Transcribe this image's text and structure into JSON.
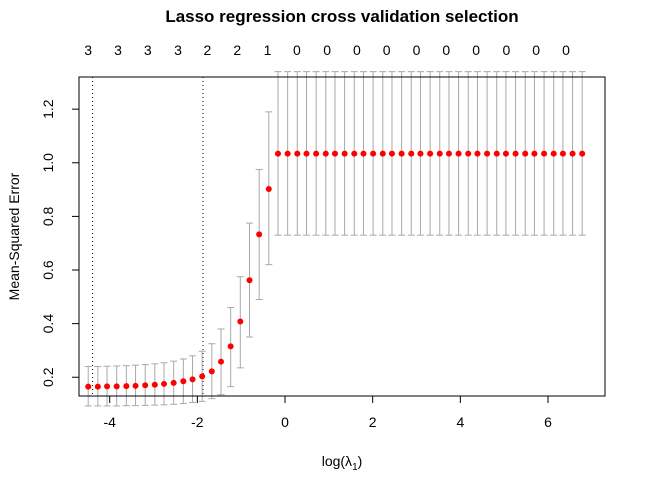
{
  "chart_data": {
    "type": "scatter",
    "title": "Lasso regression cross validation selection",
    "xlabel": "log(λ",
    "xlabel_sub": "1",
    "xlabel_close": ")",
    "ylabel": "Mean-Squared Error",
    "xlim": [
      -4.7,
      7.3
    ],
    "ylim": [
      0.13,
      1.32
    ],
    "x_ticks": [
      -4,
      -2,
      0,
      2,
      4,
      6
    ],
    "x_tick_labels": [
      "-4",
      "-2",
      "0",
      "2",
      "4",
      "6"
    ],
    "y_ticks": [
      0.2,
      0.4,
      0.6,
      0.8,
      1.0,
      1.2
    ],
    "y_tick_labels": [
      "0.2",
      "0.4",
      "0.6",
      "0.8",
      "1.0",
      "1.2"
    ],
    "top_axis_x": [
      -4.49,
      -3.81,
      -3.13,
      -2.44,
      -1.77,
      -1.09,
      -0.4,
      0.27,
      0.96,
      1.64,
      2.32,
      3.0,
      3.68,
      4.36,
      5.05,
      5.73,
      6.41
    ],
    "top_axis_labels": [
      "3",
      "3",
      "3",
      "3",
      "2",
      "2",
      "1",
      "0",
      "0",
      "0",
      "0",
      "0",
      "0",
      "0",
      "0",
      "0",
      "0"
    ],
    "vlines": [
      -4.39,
      -1.87
    ],
    "point_color": "#ff0000",
    "errorbar_color": "#a9a9a9",
    "points": {
      "x": [
        -4.49,
        -4.27,
        -4.06,
        -3.84,
        -3.62,
        -3.41,
        -3.19,
        -2.97,
        -2.76,
        -2.54,
        -2.32,
        -2.11,
        -1.89,
        -1.67,
        -1.46,
        -1.24,
        -1.02,
        -0.81,
        -0.59,
        -0.37,
        -0.16,
        0.06,
        0.28,
        0.49,
        0.71,
        0.93,
        1.14,
        1.36,
        1.58,
        1.79,
        2.01,
        2.23,
        2.44,
        2.66,
        2.88,
        3.09,
        3.31,
        3.53,
        3.74,
        3.96,
        4.18,
        4.39,
        4.61,
        4.83,
        5.04,
        5.26,
        5.48,
        5.69,
        5.91,
        6.13,
        6.34,
        6.56,
        6.78
      ],
      "y": [
        0.165,
        0.165,
        0.166,
        0.166,
        0.167,
        0.168,
        0.17,
        0.172,
        0.175,
        0.179,
        0.185,
        0.192,
        0.203,
        0.222,
        0.258,
        0.315,
        0.408,
        0.562,
        0.733,
        0.902,
        1.034,
        1.034,
        1.034,
        1.034,
        1.034,
        1.034,
        1.034,
        1.034,
        1.034,
        1.034,
        1.034,
        1.034,
        1.034,
        1.034,
        1.034,
        1.034,
        1.034,
        1.034,
        1.034,
        1.034,
        1.034,
        1.034,
        1.034,
        1.034,
        1.034,
        1.034,
        1.034,
        1.034,
        1.034,
        1.034,
        1.034,
        1.034,
        1.034
      ],
      "lower": [
        0.093,
        0.093,
        0.093,
        0.093,
        0.094,
        0.094,
        0.095,
        0.096,
        0.097,
        0.099,
        0.102,
        0.106,
        0.11,
        0.12,
        0.135,
        0.165,
        0.235,
        0.35,
        0.49,
        0.62,
        0.73,
        0.73,
        0.73,
        0.73,
        0.73,
        0.73,
        0.73,
        0.73,
        0.73,
        0.73,
        0.73,
        0.73,
        0.73,
        0.73,
        0.73,
        0.73,
        0.73,
        0.73,
        0.73,
        0.73,
        0.73,
        0.73,
        0.73,
        0.73,
        0.73,
        0.73,
        0.73,
        0.73,
        0.73,
        0.73,
        0.73,
        0.73,
        0.73
      ],
      "upper": [
        0.24,
        0.24,
        0.241,
        0.242,
        0.243,
        0.245,
        0.247,
        0.25,
        0.254,
        0.26,
        0.268,
        0.28,
        0.297,
        0.325,
        0.38,
        0.46,
        0.575,
        0.775,
        0.975,
        1.19,
        1.34,
        1.34,
        1.34,
        1.34,
        1.34,
        1.34,
        1.34,
        1.34,
        1.34,
        1.34,
        1.34,
        1.34,
        1.34,
        1.34,
        1.34,
        1.34,
        1.34,
        1.34,
        1.34,
        1.34,
        1.34,
        1.34,
        1.34,
        1.34,
        1.34,
        1.34,
        1.34,
        1.34,
        1.34,
        1.34,
        1.34,
        1.34,
        1.34
      ]
    }
  }
}
